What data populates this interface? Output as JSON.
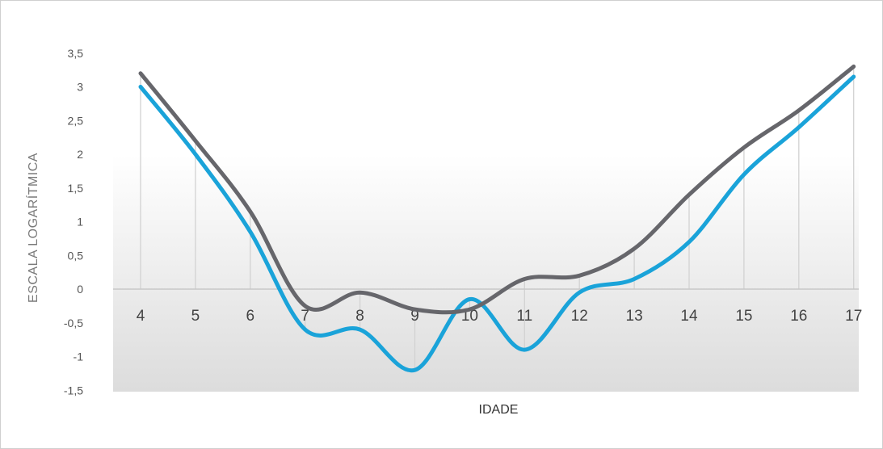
{
  "chart_data": {
    "type": "line",
    "title": "",
    "xlabel": "IDADE",
    "ylabel": "ESCALA LOGARÍTMICA",
    "x": [
      4,
      5,
      6,
      7,
      8,
      9,
      10,
      11,
      12,
      13,
      14,
      15,
      16,
      17
    ],
    "x_tick_labels": [
      "4",
      "5",
      "6",
      "7",
      "8",
      "9",
      "10",
      "11",
      "12",
      "13",
      "14",
      "15",
      "16",
      "17"
    ],
    "y_tick_labels": [
      "3,5",
      "3",
      "2,5",
      "2",
      "1,5",
      "1",
      "0,5",
      "0",
      "-0,5",
      "-1",
      "-1,5"
    ],
    "y_ticks": [
      3.5,
      3,
      2.5,
      2,
      1.5,
      1,
      0.5,
      0,
      -0.5,
      -1,
      -1.5
    ],
    "ylim": [
      -1.5,
      3.5
    ],
    "grid": "vertical lines at each x",
    "series": [
      {
        "color": "#1aa3d9",
        "values": [
          3.0,
          2.0,
          0.85,
          -0.6,
          -0.6,
          -1.2,
          -0.15,
          -0.9,
          -0.05,
          0.15,
          0.7,
          1.7,
          2.4,
          3.15
        ]
      },
      {
        "color": "#66666b",
        "values": [
          3.2,
          2.2,
          1.15,
          -0.25,
          -0.05,
          -0.3,
          -0.3,
          0.15,
          0.2,
          0.6,
          1.4,
          2.1,
          2.65,
          3.3
        ]
      }
    ]
  }
}
